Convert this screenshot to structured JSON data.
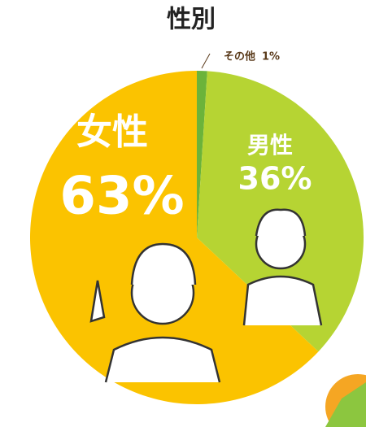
{
  "chart_data": {
    "type": "pie",
    "title": "性別",
    "categories": [
      "その他",
      "男性",
      "女性"
    ],
    "values": [
      1,
      36,
      63
    ],
    "value_labels": [
      "1%",
      "36%",
      "63%"
    ],
    "colors": [
      "#6bb33a",
      "#b6d433",
      "#fbc300"
    ]
  }
}
